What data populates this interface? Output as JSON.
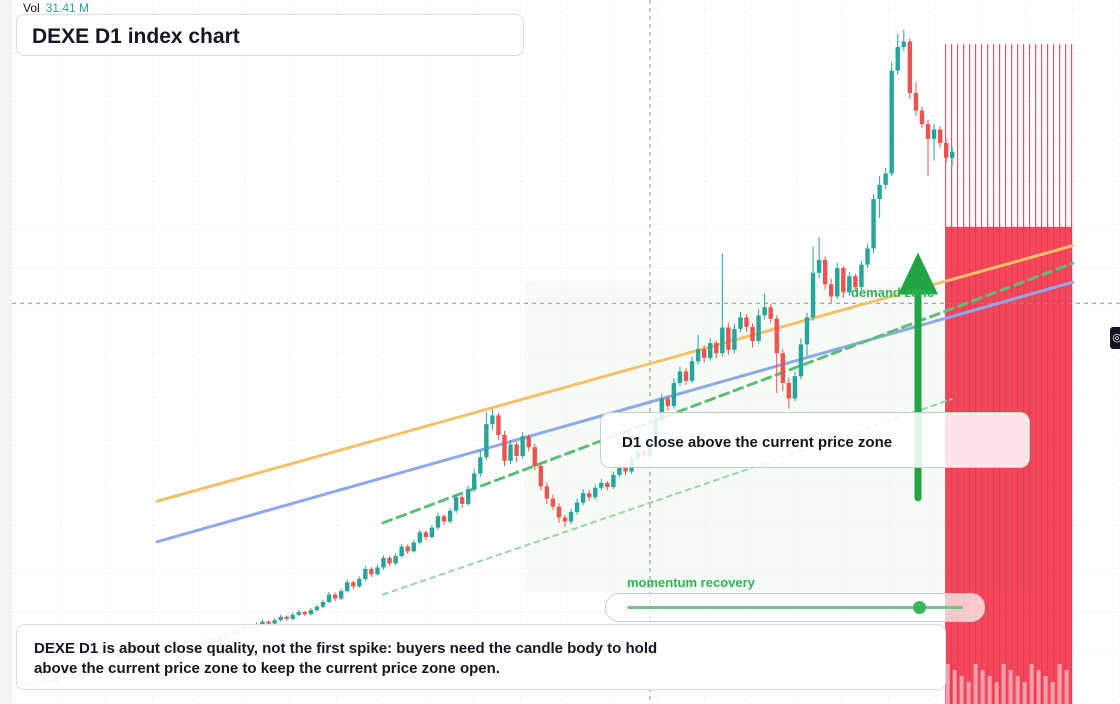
{
  "header": {
    "vol_label": "Vol",
    "vol_value": "31.41 M",
    "title": "DEXE D1 index chart"
  },
  "annotations": {
    "demand_label": "demand zone",
    "close_note": "D1 close above the current price zone",
    "momentum_label": "momentum recovery",
    "momentum_level": 0.87,
    "bottom_note": "DEXE D1 is about close quality, not the first spike: buyers need the candle body to hold above the current price zone to keep the current price zone open."
  },
  "icons": {
    "price_marker": "target-icon"
  },
  "colors": {
    "up": "#26a69a",
    "down": "#ef5350",
    "orange_line": "#f6c06b",
    "blue_line": "#8ea8ec",
    "green_accent": "#21a544",
    "volume_wall": "#f0344a"
  },
  "chart_data": {
    "type": "candlestick",
    "series_name": "DEXE D1",
    "grid": true,
    "price_range": [
      0,
      100
    ],
    "candles": [
      [
        2.0,
        2.2,
        2.4,
        1.8
      ],
      [
        2.2,
        2.5,
        2.7,
        2.0
      ],
      [
        2.5,
        2.3,
        2.8,
        2.1
      ],
      [
        2.3,
        2.6,
        2.8,
        2.1
      ],
      [
        2.6,
        2.9,
        3.1,
        2.4
      ],
      [
        2.9,
        2.7,
        3.1,
        2.5
      ],
      [
        2.7,
        3.1,
        3.3,
        2.5
      ],
      [
        3.1,
        3.4,
        3.6,
        2.9
      ],
      [
        3.4,
        3.3,
        3.7,
        3.1
      ],
      [
        3.3,
        3.8,
        4.0,
        3.1
      ],
      [
        3.8,
        4.2,
        4.4,
        3.6
      ],
      [
        4.2,
        4.0,
        4.4,
        3.8
      ],
      [
        4.0,
        4.5,
        4.7,
        3.8
      ],
      [
        4.5,
        4.9,
        5.1,
        4.3
      ],
      [
        4.9,
        4.7,
        5.2,
        4.5
      ],
      [
        4.7,
        5.2,
        5.4,
        4.5
      ],
      [
        5.2,
        5.6,
        5.8,
        5.0
      ],
      [
        5.6,
        5.4,
        5.9,
        5.2
      ],
      [
        5.4,
        5.9,
        6.1,
        5.2
      ],
      [
        5.9,
        6.2,
        6.4,
        5.7
      ],
      [
        6.2,
        6.0,
        6.4,
        5.8
      ],
      [
        6.0,
        6.5,
        6.7,
        5.8
      ],
      [
        6.5,
        6.8,
        7.0,
        6.3
      ],
      [
        6.8,
        6.6,
        7.0,
        6.4
      ],
      [
        6.6,
        7.1,
        7.3,
        6.4
      ],
      [
        7.1,
        7.5,
        7.7,
        6.9
      ],
      [
        7.5,
        7.3,
        7.8,
        7.1
      ],
      [
        7.3,
        7.8,
        8.0,
        7.1
      ],
      [
        7.8,
        8.2,
        8.5,
        7.6
      ],
      [
        8.2,
        8.0,
        8.5,
        7.8
      ],
      [
        8.0,
        8.6,
        8.9,
        7.8
      ],
      [
        8.6,
        9.1,
        9.4,
        8.4
      ],
      [
        9.1,
        8.9,
        9.4,
        8.6
      ],
      [
        8.9,
        9.5,
        9.8,
        8.7
      ],
      [
        9.5,
        10.0,
        10.3,
        9.3
      ],
      [
        10.0,
        9.7,
        10.2,
        9.4
      ],
      [
        9.7,
        10.3,
        10.6,
        9.5
      ],
      [
        10.3,
        10.9,
        11.2,
        10.1
      ],
      [
        10.9,
        10.6,
        11.1,
        10.3
      ],
      [
        10.6,
        11.2,
        11.5,
        10.4
      ],
      [
        11.2,
        11.6,
        11.9,
        11.0
      ],
      [
        11.6,
        11.3,
        11.8,
        11.0
      ],
      [
        11.3,
        11.8,
        12.1,
        11.1
      ],
      [
        11.8,
        12.3,
        12.6,
        11.6
      ],
      [
        12.3,
        12.0,
        12.5,
        11.7
      ],
      [
        12.0,
        12.6,
        12.9,
        11.8
      ],
      [
        12.6,
        13.0,
        13.3,
        12.4
      ],
      [
        13.0,
        12.7,
        13.2,
        12.4
      ],
      [
        12.7,
        13.3,
        13.6,
        12.5
      ],
      [
        13.3,
        13.8,
        14.1,
        13.1
      ],
      [
        13.8,
        14.5,
        14.8,
        13.6
      ],
      [
        14.5,
        15.6,
        16.0,
        14.3
      ],
      [
        15.6,
        15.0,
        15.9,
        14.6
      ],
      [
        15.0,
        16.1,
        16.5,
        14.8
      ],
      [
        16.1,
        17.4,
        17.8,
        15.9
      ],
      [
        17.4,
        16.8,
        17.7,
        16.4
      ],
      [
        16.8,
        17.9,
        18.3,
        16.6
      ],
      [
        17.9,
        19.4,
        19.8,
        17.6
      ],
      [
        19.4,
        18.6,
        19.7,
        18.2
      ],
      [
        18.6,
        19.6,
        20.0,
        18.4
      ],
      [
        19.6,
        21.0,
        21.4,
        19.3
      ],
      [
        21.0,
        20.2,
        21.3,
        19.8
      ],
      [
        20.2,
        21.3,
        21.7,
        20.0
      ],
      [
        21.3,
        22.7,
        23.1,
        21.0
      ],
      [
        22.7,
        22.0,
        23.0,
        21.6
      ],
      [
        22.0,
        23.3,
        23.7,
        21.8
      ],
      [
        23.3,
        24.8,
        25.2,
        23.0
      ],
      [
        24.8,
        24.1,
        25.1,
        23.6
      ],
      [
        24.1,
        25.5,
        25.9,
        23.9
      ],
      [
        25.5,
        27.2,
        27.7,
        25.2
      ],
      [
        27.2,
        26.4,
        27.5,
        25.9
      ],
      [
        26.4,
        28.0,
        28.4,
        26.1
      ],
      [
        28.0,
        30.0,
        30.5,
        27.6
      ],
      [
        30.0,
        29.0,
        30.3,
        28.4
      ],
      [
        29.0,
        31.2,
        31.7,
        28.7
      ],
      [
        31.2,
        33.5,
        34.2,
        30.8
      ],
      [
        33.5,
        35.9,
        37.0,
        33.0
      ],
      [
        35.9,
        40.8,
        42.6,
        35.5
      ],
      [
        40.8,
        42.1,
        43.0,
        40.0
      ],
      [
        42.1,
        39.2,
        42.5,
        38.4
      ],
      [
        39.2,
        35.4,
        39.8,
        34.6
      ],
      [
        35.4,
        37.8,
        38.5,
        34.9
      ],
      [
        37.8,
        36.1,
        38.2,
        35.2
      ],
      [
        36.1,
        39.0,
        39.6,
        35.7
      ],
      [
        39.0,
        37.4,
        39.3,
        36.8
      ],
      [
        37.4,
        34.6,
        37.9,
        34.0
      ],
      [
        34.6,
        31.6,
        35.0,
        31.0
      ],
      [
        31.6,
        29.8,
        32.2,
        29.0
      ],
      [
        29.8,
        28.6,
        30.4,
        28.1
      ],
      [
        28.6,
        27.0,
        29.1,
        26.2
      ],
      [
        27.0,
        26.4,
        27.4,
        25.6
      ],
      [
        26.4,
        27.8,
        28.3,
        26.0
      ],
      [
        27.8,
        29.2,
        29.8,
        27.4
      ],
      [
        29.2,
        30.6,
        31.2,
        28.8
      ],
      [
        30.6,
        30.0,
        31.1,
        29.5
      ],
      [
        30.0,
        31.4,
        31.9,
        29.7
      ],
      [
        31.4,
        32.1,
        32.7,
        31.0
      ],
      [
        32.1,
        31.5,
        32.4,
        31.0
      ],
      [
        31.5,
        33.3,
        33.8,
        31.2
      ],
      [
        33.3,
        34.4,
        35.0,
        33.0
      ],
      [
        34.4,
        33.8,
        34.9,
        33.3
      ],
      [
        33.8,
        35.7,
        36.2,
        33.5
      ],
      [
        35.7,
        36.8,
        37.4,
        35.3
      ],
      [
        36.8,
        36.2,
        37.2,
        35.7
      ],
      [
        36.2,
        38.0,
        38.5,
        35.9
      ],
      [
        38.0,
        41.4,
        42.0,
        37.6
      ],
      [
        41.4,
        44.6,
        45.3,
        41.0
      ],
      [
        44.6,
        43.5,
        45.0,
        42.8
      ],
      [
        43.5,
        46.9,
        47.6,
        43.1
      ],
      [
        46.9,
        48.6,
        49.3,
        46.4
      ],
      [
        48.6,
        47.2,
        49.1,
        46.6
      ],
      [
        47.2,
        50.1,
        50.8,
        46.9
      ],
      [
        50.1,
        51.9,
        54.0,
        49.6
      ],
      [
        51.9,
        50.6,
        52.5,
        49.9
      ],
      [
        50.6,
        52.8,
        53.5,
        50.2
      ],
      [
        52.8,
        51.3,
        53.2,
        50.5
      ],
      [
        51.3,
        55.1,
        66.0,
        50.8
      ],
      [
        55.1,
        51.8,
        55.8,
        51.1
      ],
      [
        51.8,
        54.9,
        55.6,
        51.3
      ],
      [
        54.9,
        56.6,
        57.4,
        54.4
      ],
      [
        56.6,
        55.2,
        57.1,
        54.5
      ],
      [
        55.2,
        53.1,
        55.7,
        52.2
      ],
      [
        53.1,
        56.9,
        57.8,
        52.7
      ],
      [
        56.9,
        58.1,
        60.1,
        56.3
      ],
      [
        58.1,
        56.4,
        58.6,
        55.8
      ],
      [
        56.4,
        51.3,
        56.9,
        45.4
      ],
      [
        51.3,
        46.9,
        51.9,
        45.7
      ],
      [
        46.9,
        44.6,
        47.7,
        43.1
      ],
      [
        44.6,
        47.9,
        48.6,
        44.2
      ],
      [
        47.9,
        52.6,
        53.5,
        47.4
      ],
      [
        52.6,
        56.6,
        57.3,
        50.9
      ],
      [
        56.6,
        63.2,
        67.1,
        56.1
      ],
      [
        63.2,
        65.1,
        68.5,
        62.4
      ],
      [
        65.1,
        61.5,
        65.6,
        60.7
      ],
      [
        61.5,
        59.7,
        62.3,
        58.8
      ],
      [
        59.7,
        63.9,
        64.7,
        59.3
      ],
      [
        63.9,
        60.3,
        64.2,
        59.5
      ],
      [
        60.3,
        62.7,
        63.3,
        59.8
      ],
      [
        62.7,
        61.1,
        63.0,
        60.4
      ],
      [
        61.1,
        64.4,
        64.9,
        60.7
      ],
      [
        64.4,
        66.8,
        67.4,
        63.9
      ],
      [
        66.8,
        74.1,
        74.8,
        66.1
      ],
      [
        74.1,
        76.2,
        77.5,
        71.3
      ],
      [
        76.2,
        77.9,
        78.7,
        75.6
      ],
      [
        77.9,
        93.1,
        94.4,
        77.5
      ],
      [
        93.1,
        96.6,
        98.6,
        92.5
      ],
      [
        96.6,
        97.4,
        99.1,
        96.0
      ],
      [
        97.4,
        89.8,
        97.9,
        88.9
      ],
      [
        89.8,
        87.2,
        91.4,
        86.4
      ],
      [
        87.2,
        85.2,
        87.8,
        84.6
      ],
      [
        85.2,
        83.0,
        85.9,
        77.5
      ],
      [
        83.0,
        84.4,
        85.2,
        79.8
      ],
      [
        84.4,
        82.4,
        84.9,
        81.7
      ],
      [
        82.4,
        80.2,
        82.9,
        79.5
      ],
      [
        80.2,
        81.1,
        81.8,
        79.0
      ]
    ],
    "overlays": [
      {
        "name": "orange trendline",
        "from": [
          0,
          29.4
        ],
        "to": [
          155,
          67.2
        ]
      },
      {
        "name": "blue trendline",
        "from": [
          0,
          23.4
        ],
        "to": [
          155,
          61.8
        ]
      },
      {
        "name": "green dashed support",
        "from": [
          60,
          26.2
        ],
        "to": [
          155,
          64.6
        ],
        "style": "dashed"
      },
      {
        "name": "green dotted support",
        "from": [
          60,
          15.6
        ],
        "to": [
          135,
          44.5
        ],
        "style": "dotted"
      }
    ],
    "arrow": {
      "from_price": 29.9,
      "to_price": 66.2,
      "direction": "up"
    },
    "current_price_level": 58.7,
    "price_crosshair": 58.7
  }
}
